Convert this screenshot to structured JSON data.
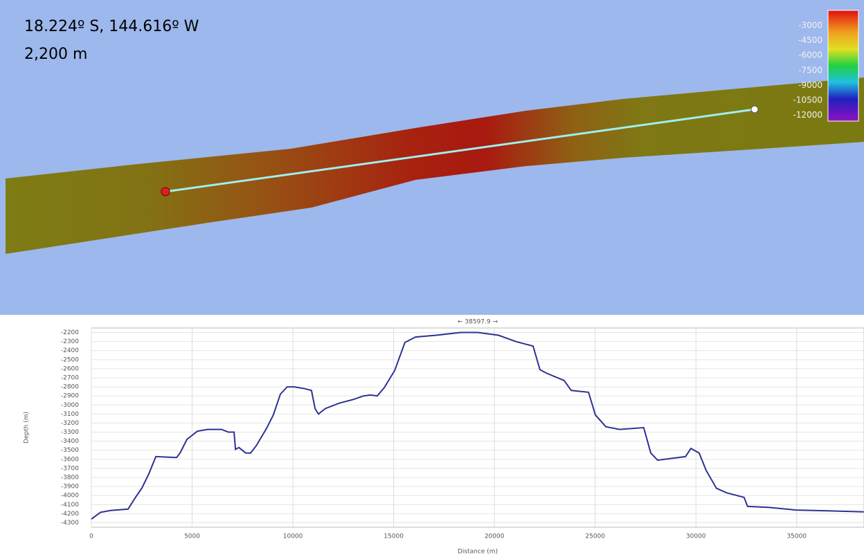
{
  "map": {
    "location": "18.224º S, 144.616º W",
    "depth": "2,200 m",
    "colorbar": [
      -3000,
      -4500,
      -6000,
      -7500,
      -9000,
      -10500,
      -12000
    ]
  },
  "chart_data": {
    "type": "line",
    "ylabel": "Depth (m)",
    "xlabel": "Distance (m)",
    "span_label": "← 38597.9 →",
    "xlim": [
      0,
      38340
    ],
    "ylim": [
      -4350,
      -2150
    ],
    "xticks": [
      0,
      5000,
      10000,
      15000,
      20000,
      25000,
      30000,
      35000
    ],
    "yticks": [
      -2200,
      -2300,
      -2400,
      -2500,
      -2600,
      -2700,
      -2800,
      -2900,
      -3000,
      -3100,
      -3200,
      -3300,
      -3400,
      -3500,
      -3600,
      -3700,
      -3800,
      -3900,
      -4000,
      -4100,
      -4200,
      -4300
    ],
    "grid": true,
    "x": [
      0,
      450,
      960,
      1820,
      2160,
      2510,
      2850,
      3200,
      4230,
      4400,
      4740,
      5260,
      5770,
      6460,
      6800,
      7080,
      7150,
      7320,
      7660,
      7900,
      8180,
      8690,
      9030,
      9380,
      9720,
      10060,
      10580,
      10920,
      11100,
      11270,
      11610,
      12300,
      12990,
      13500,
      13840,
      14190,
      14530,
      15050,
      15560,
      16080,
      17110,
      18320,
      19170,
      20200,
      21060,
      21920,
      22260,
      22600,
      23460,
      23810,
      24670,
      25010,
      25530,
      26210,
      27410,
      27760,
      28100,
      28790,
      29480,
      29750,
      30160,
      30500,
      31020,
      31530,
      32390,
      32560,
      33590,
      34960,
      36680,
      38330
    ],
    "series": [
      {
        "color": "#2e3192",
        "values": [
          -4260,
          -4185,
          -4165,
          -4150,
          -4030,
          -3915,
          -3760,
          -3570,
          -3580,
          -3530,
          -3380,
          -3290,
          -3270,
          -3270,
          -3300,
          -3300,
          -3490,
          -3470,
          -3530,
          -3530,
          -3450,
          -3260,
          -3110,
          -2880,
          -2800,
          -2800,
          -2820,
          -2840,
          -3040,
          -3100,
          -3040,
          -2980,
          -2940,
          -2900,
          -2890,
          -2900,
          -2810,
          -2620,
          -2310,
          -2250,
          -2230,
          -2200,
          -2200,
          -2230,
          -2300,
          -2350,
          -2610,
          -2650,
          -2730,
          -2840,
          -2860,
          -3110,
          -3240,
          -3270,
          -3250,
          -3530,
          -3610,
          -3590,
          -3570,
          -3480,
          -3530,
          -3720,
          -3920,
          -3970,
          -4020,
          -4120,
          -4130,
          -4160,
          -4170,
          -4180
        ]
      }
    ]
  }
}
